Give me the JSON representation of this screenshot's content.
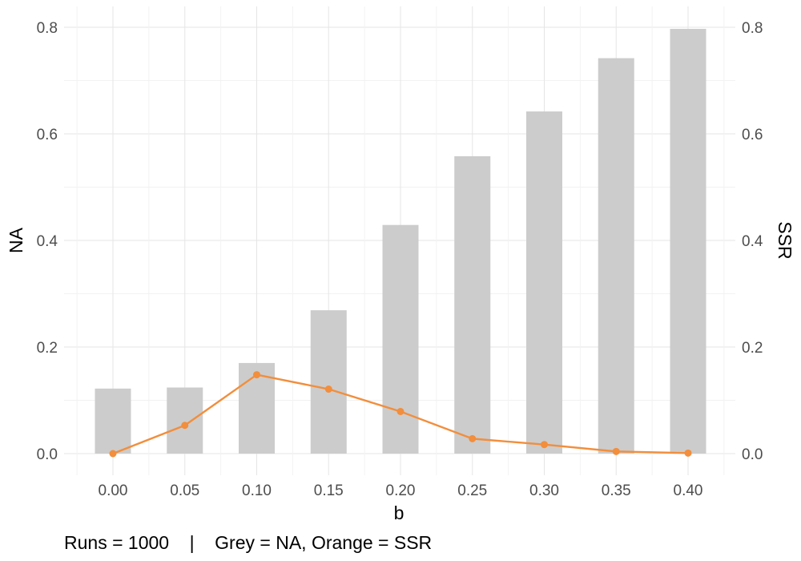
{
  "chart_data": {
    "type": "bar",
    "x_name": "b",
    "categories": [
      "0.00",
      "0.05",
      "0.10",
      "0.15",
      "0.20",
      "0.25",
      "0.30",
      "0.35",
      "0.40"
    ],
    "series": [
      {
        "name": "NA",
        "type": "bar",
        "axis": "left",
        "color": "#cccccc",
        "values": [
          0.122,
          0.124,
          0.17,
          0.269,
          0.429,
          0.558,
          0.642,
          0.742,
          0.797
        ]
      },
      {
        "name": "SSR",
        "type": "line",
        "axis": "right",
        "color": "#f28e3c",
        "values": [
          0.0,
          0.053,
          0.148,
          0.121,
          0.079,
          0.028,
          0.017,
          0.004,
          0.001
        ]
      }
    ],
    "xlabel": "b",
    "ylabel_left": "NA",
    "ylabel_right": "SSR",
    "ylim": [
      -0.04,
      0.84
    ],
    "yticks": [
      "0.0",
      "0.2",
      "0.4",
      "0.6",
      "0.8"
    ],
    "ytick_values": [
      0,
      0.2,
      0.4,
      0.6,
      0.8
    ],
    "grid": true,
    "caption": "Runs = 1000    |    Grey = NA, Orange = SSR"
  }
}
